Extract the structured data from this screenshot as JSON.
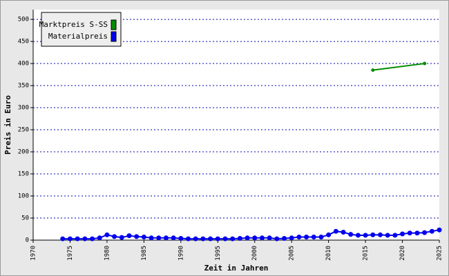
{
  "chart_data": {
    "type": "line",
    "xlabel": "Zeit in Jahren",
    "ylabel": "Preis in Euro",
    "xlim": [
      1970,
      2025
    ],
    "ylim": [
      0,
      522
    ],
    "xticks": [
      1970,
      1975,
      1980,
      1985,
      1990,
      1995,
      2000,
      2005,
      2010,
      2015,
      2020,
      2025
    ],
    "yticks": [
      0,
      50,
      100,
      150,
      200,
      250,
      300,
      350,
      400,
      450,
      500
    ],
    "grid": true,
    "legend": "upper left",
    "series": [
      {
        "name": "Marktpreis S-SS",
        "color": "#008c00",
        "x": [
          2016,
          2023
        ],
        "values": [
          385,
          400
        ]
      },
      {
        "name": "Materialpreis",
        "color": "#0000ee",
        "x": [
          1974,
          1975,
          1976,
          1977,
          1978,
          1979,
          1980,
          1981,
          1982,
          1983,
          1984,
          1985,
          1986,
          1987,
          1988,
          1989,
          1990,
          1991,
          1992,
          1993,
          1994,
          1995,
          1996,
          1997,
          1998,
          1999,
          2000,
          2001,
          2002,
          2003,
          2004,
          2005,
          2006,
          2007,
          2008,
          2009,
          2010,
          2011,
          2012,
          2013,
          2014,
          2015,
          2016,
          2017,
          2018,
          2019,
          2020,
          2021,
          2022,
          2023,
          2024,
          2025
        ],
        "values": [
          3,
          3,
          3,
          3,
          3,
          5,
          12,
          8,
          6,
          10,
          8,
          7,
          5,
          5,
          5,
          5,
          4,
          3,
          3,
          3,
          3,
          3,
          3,
          3,
          4,
          5,
          5,
          5,
          5,
          3,
          4,
          5,
          7,
          7,
          7,
          7,
          12,
          20,
          18,
          13,
          11,
          11,
          12,
          12,
          11,
          11,
          14,
          16,
          16,
          17,
          20,
          23
        ]
      }
    ]
  }
}
